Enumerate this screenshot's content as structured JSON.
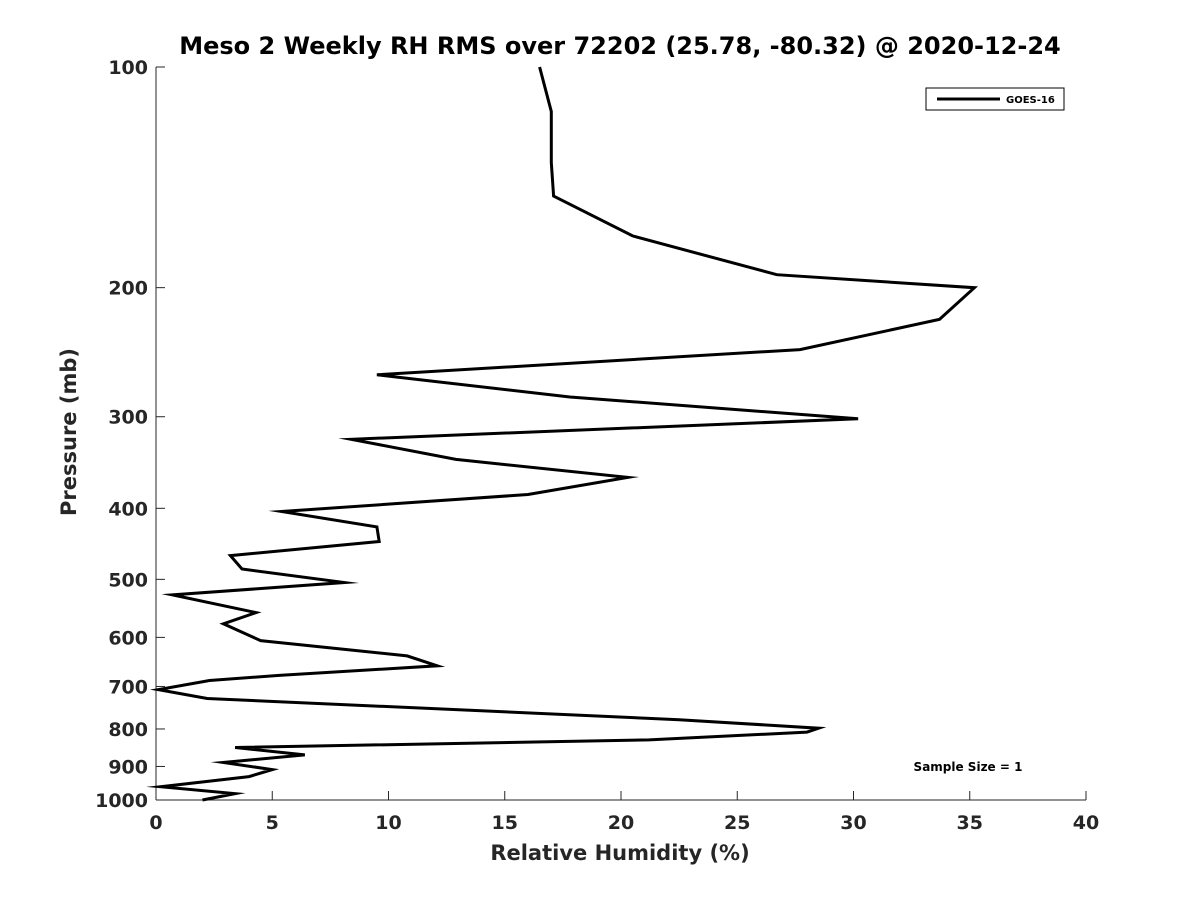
{
  "chart_data": {
    "type": "line",
    "title": "Meso 2 Weekly RH RMS over 72202 (25.78, -80.32) @ 2020-12-24",
    "xlabel": "Relative Humidity (%)",
    "ylabel": "Pressure (mb)",
    "xlim": [
      0,
      40
    ],
    "ylim": [
      100,
      1000
    ],
    "y_scale": "log",
    "y_reversed": true,
    "xticks": [
      0,
      5,
      10,
      15,
      20,
      25,
      30,
      35,
      40
    ],
    "xtick_labels": [
      "0",
      "5",
      "10",
      "15",
      "20",
      "25",
      "30",
      "35",
      "40"
    ],
    "yticks": [
      100,
      200,
      300,
      400,
      500,
      600,
      700,
      800,
      900,
      1000
    ],
    "ytick_labels": [
      "100",
      "200",
      "300",
      "400",
      "500",
      "600",
      "700",
      "800",
      "900",
      "1000"
    ],
    "grid": false,
    "legend_position": "top-right",
    "annotation": "Sample Size = 1",
    "series": [
      {
        "name": "GOES-16",
        "color": "#000000",
        "points": [
          [
            16.5,
            100
          ],
          [
            17.0,
            115
          ],
          [
            17.0,
            135
          ],
          [
            17.1,
            150
          ],
          [
            20.5,
            170
          ],
          [
            26.7,
            192
          ],
          [
            35.2,
            200
          ],
          [
            33.7,
            221
          ],
          [
            27.7,
            243
          ],
          [
            9.5,
            263
          ],
          [
            17.8,
            282
          ],
          [
            30.2,
            302
          ],
          [
            8.4,
            322
          ],
          [
            12.9,
            343
          ],
          [
            20.3,
            363
          ],
          [
            16.0,
            383
          ],
          [
            5.4,
            404
          ],
          [
            9.5,
            424
          ],
          [
            9.6,
            444
          ],
          [
            3.2,
            464
          ],
          [
            3.7,
            484
          ],
          [
            8.1,
            505
          ],
          [
            0.7,
            525
          ],
          [
            4.3,
            555
          ],
          [
            2.9,
            575
          ],
          [
            4.5,
            606
          ],
          [
            10.8,
            636
          ],
          [
            12.1,
            656
          ],
          [
            5.3,
            676
          ],
          [
            2.3,
            687
          ],
          [
            0.1,
            707
          ],
          [
            2.2,
            727
          ],
          [
            22.5,
            777
          ],
          [
            28.5,
            798
          ],
          [
            28.0,
            808
          ],
          [
            21.2,
            828
          ],
          [
            3.4,
            848
          ],
          [
            6.4,
            868
          ],
          [
            2.9,
            889
          ],
          [
            5.0,
            909
          ],
          [
            4.0,
            929
          ],
          [
            0.2,
            959
          ],
          [
            3.4,
            980
          ],
          [
            2.0,
            1000
          ]
        ]
      }
    ]
  }
}
